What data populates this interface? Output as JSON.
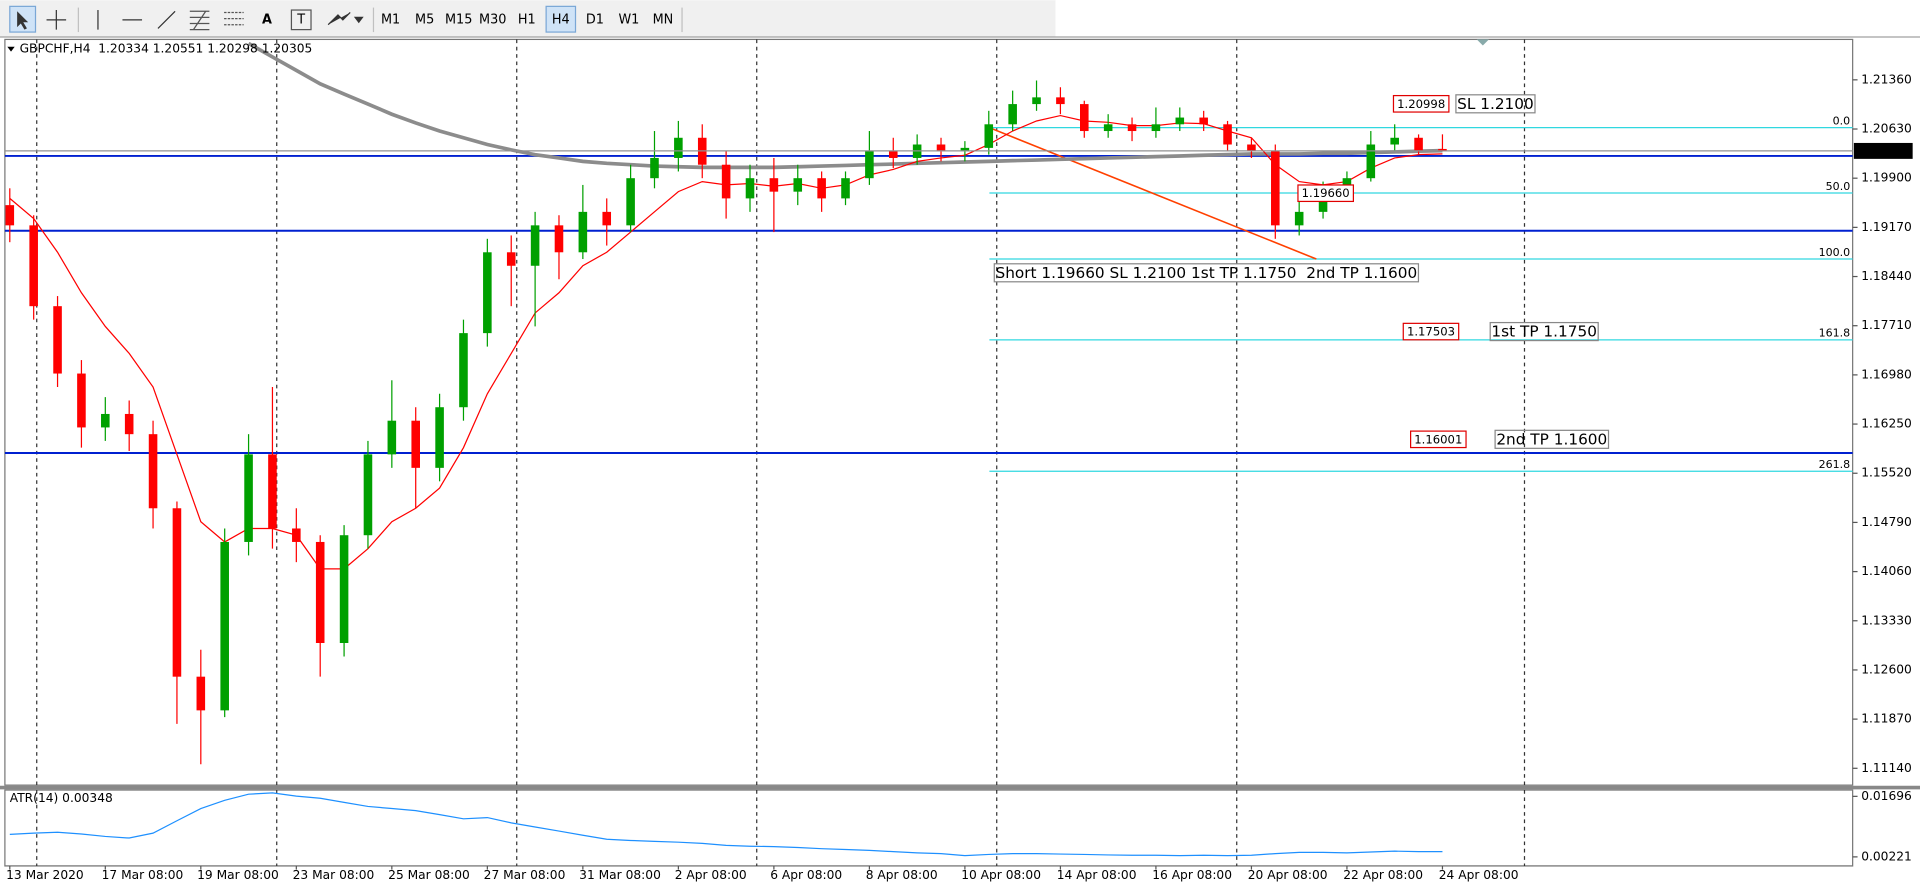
{
  "toolbar": {
    "timeframes": [
      "M1",
      "M5",
      "M15",
      "M30",
      "H1",
      "H4",
      "D1",
      "W1",
      "MN"
    ],
    "active": "H4"
  },
  "chart_data": {
    "type": "candlestick",
    "title": "GBPCHF,H4  1.20334 1.20551 1.20298 1.20305",
    "categories": [
      "13 Mar 2020",
      null,
      null,
      null,
      "17 Mar 08:00",
      null,
      null,
      null,
      "19 Mar 08:00",
      null,
      null,
      null,
      "23 Mar 08:00",
      null,
      null,
      null,
      "25 Mar 08:00",
      null,
      null,
      null,
      "27 Mar 08:00",
      null,
      null,
      null,
      "31 Mar 08:00",
      null,
      null,
      null,
      "2 Apr 08:00",
      null,
      null,
      null,
      "6 Apr 08:00",
      null,
      null,
      null,
      "8 Apr 08:00",
      null,
      null,
      null,
      "10 Apr 08:00",
      null,
      null,
      null,
      "14 Apr 08:00",
      null,
      null,
      null,
      "16 Apr 08:00",
      null,
      null,
      null,
      "20 Apr 08:00",
      null,
      null,
      null,
      "22 Apr 08:00",
      null,
      null,
      null,
      "24 Apr 08:00"
    ],
    "open": [
      1.195,
      1.192,
      1.18,
      1.17,
      1.162,
      1.164,
      1.161,
      1.15,
      1.125,
      1.12,
      1.145,
      1.158,
      1.147,
      1.145,
      1.13,
      1.146,
      1.158,
      1.163,
      1.156,
      1.165,
      1.176,
      1.188,
      1.186,
      1.192,
      1.188,
      1.194,
      1.192,
      1.199,
      1.202,
      1.205,
      1.201,
      1.196,
      1.199,
      1.197,
      1.199,
      1.196,
      1.199,
      1.203,
      1.202,
      1.204,
      1.203,
      1.2035,
      1.207,
      1.21,
      1.211,
      1.21,
      1.206,
      1.207,
      1.206,
      1.207,
      1.208,
      1.207,
      1.204,
      1.203,
      1.192,
      1.194,
      1.197,
      1.199,
      1.204,
      1.205,
      1.20334
    ],
    "high": [
      1.1975,
      1.1935,
      1.1815,
      1.172,
      1.1665,
      1.166,
      1.163,
      1.151,
      1.129,
      1.147,
      1.161,
      1.168,
      1.15,
      1.146,
      1.1475,
      1.16,
      1.169,
      1.165,
      1.167,
      1.178,
      1.19,
      1.1905,
      1.194,
      1.1935,
      1.198,
      1.196,
      1.201,
      1.206,
      1.2075,
      1.207,
      1.203,
      1.201,
      1.202,
      1.201,
      1.2,
      1.2,
      1.206,
      1.205,
      1.2055,
      1.205,
      1.2045,
      1.209,
      1.212,
      1.2135,
      1.2125,
      1.2105,
      1.2085,
      1.208,
      1.2095,
      1.2095,
      1.209,
      1.2075,
      1.205,
      1.204,
      1.196,
      1.1985,
      1.2,
      1.206,
      1.207,
      1.2055,
      1.20551
    ],
    "low": [
      1.1895,
      1.178,
      1.168,
      1.159,
      1.16,
      1.1585,
      1.147,
      1.118,
      1.112,
      1.119,
      1.143,
      1.144,
      1.142,
      1.125,
      1.128,
      1.144,
      1.156,
      1.15,
      1.154,
      1.163,
      1.174,
      1.18,
      1.177,
      1.184,
      1.187,
      1.189,
      1.191,
      1.1975,
      1.2,
      1.199,
      1.193,
      1.194,
      1.191,
      1.195,
      1.194,
      1.195,
      1.198,
      1.2005,
      1.201,
      1.2015,
      1.2015,
      1.2025,
      1.206,
      1.209,
      1.2085,
      1.205,
      1.205,
      1.2045,
      1.205,
      1.206,
      1.206,
      1.203,
      1.202,
      1.19,
      1.1905,
      1.193,
      1.196,
      1.1985,
      1.203,
      1.2025,
      1.20298
    ],
    "close": [
      1.192,
      1.18,
      1.17,
      1.162,
      1.164,
      1.161,
      1.15,
      1.125,
      1.12,
      1.145,
      1.158,
      1.147,
      1.145,
      1.13,
      1.146,
      1.158,
      1.163,
      1.156,
      1.165,
      1.176,
      1.188,
      1.186,
      1.192,
      1.188,
      1.194,
      1.192,
      1.199,
      1.202,
      1.205,
      1.201,
      1.196,
      1.199,
      1.197,
      1.199,
      1.196,
      1.199,
      1.203,
      1.202,
      1.204,
      1.203,
      1.2035,
      1.207,
      1.21,
      1.211,
      1.21,
      1.206,
      1.207,
      1.206,
      1.207,
      1.208,
      1.207,
      1.204,
      1.203,
      1.192,
      1.194,
      1.197,
      1.199,
      1.204,
      1.205,
      1.203,
      1.20305
    ],
    "up_color": "#00a000",
    "down_color": "#ff0000",
    "series": [
      {
        "color": "#8c8c8c",
        "width": 3,
        "values": [
          null,
          null,
          null,
          null,
          null,
          null,
          null,
          null,
          null,
          null,
          1.219,
          1.217,
          1.215,
          1.213,
          1.2115,
          1.21,
          1.2085,
          1.2072,
          1.206,
          1.205,
          1.204,
          1.2032,
          1.2025,
          1.202,
          1.2015,
          1.2012,
          1.201,
          1.2008,
          1.2007,
          1.2006,
          1.2006,
          1.2006,
          1.2006,
          1.2007,
          1.2008,
          1.2009,
          1.201,
          1.2011,
          1.2012,
          1.2013,
          1.2014,
          1.2015,
          1.2016,
          1.2017,
          1.2018,
          1.2019,
          1.202,
          1.2021,
          1.2022,
          1.2023,
          1.2024,
          1.2025,
          1.2026,
          1.2026,
          1.2026,
          1.2027,
          1.2027,
          1.2028,
          1.2029,
          1.203,
          1.2031
        ]
      },
      {
        "color": "#ff0000",
        "width": 1,
        "values": [
          1.196,
          1.193,
          1.188,
          1.182,
          1.177,
          1.173,
          1.168,
          1.158,
          1.148,
          1.145,
          1.147,
          1.147,
          1.146,
          1.141,
          1.141,
          1.144,
          1.148,
          1.15,
          1.153,
          1.159,
          1.167,
          1.173,
          1.179,
          1.182,
          1.186,
          1.188,
          1.191,
          1.194,
          1.197,
          1.1985,
          1.198,
          1.1982,
          1.1978,
          1.1982,
          1.1975,
          1.198,
          1.1995,
          1.2003,
          1.2015,
          1.202,
          1.2024,
          1.204,
          1.206,
          1.2075,
          1.2083,
          1.2075,
          1.2073,
          1.2068,
          1.2068,
          1.2072,
          1.2071,
          1.206,
          1.205,
          1.201,
          1.1985,
          1.198,
          1.1985,
          1.2005,
          1.202,
          1.2025,
          1.2026
        ]
      }
    ],
    "ylim": [
      1.1089,
      1.2196
    ],
    "yticks": [
      {
        "value": 1.2136,
        "label": "1.21360"
      },
      {
        "value": 1.2063,
        "label": "1.20630"
      },
      {
        "value": 1.199,
        "label": "1.19900"
      },
      {
        "value": 1.1917,
        "label": "1.19170"
      },
      {
        "value": 1.1844,
        "label": "1.18440"
      },
      {
        "value": 1.1771,
        "label": "1.17710"
      },
      {
        "value": 1.1698,
        "label": "1.16980"
      },
      {
        "value": 1.1625,
        "label": "1.16250"
      },
      {
        "value": 1.1552,
        "label": "1.15520"
      },
      {
        "value": 1.1479,
        "label": "1.14790"
      },
      {
        "value": 1.1406,
        "label": "1.14060"
      },
      {
        "value": 1.1333,
        "label": "1.13330"
      },
      {
        "value": 1.126,
        "label": "1.12600"
      },
      {
        "value": 1.1187,
        "label": "1.11870"
      },
      {
        "value": 1.1114,
        "label": "1.11140"
      }
    ],
    "last_price": 1.20305,
    "hlines": {
      "color": "#0020d0",
      "values": [
        1.2023,
        1.1912,
        1.1582
      ]
    },
    "fibonacci": {
      "color": "#30d8e0",
      "trend_color": "#ff4000",
      "levels": [
        {
          "value": 1.2065,
          "label": "0.0"
        },
        {
          "value": 1.1968,
          "label": "50.0"
        },
        {
          "value": 1.187,
          "label": "100.0"
        },
        {
          "value": 1.175,
          "label": "161.8"
        },
        {
          "value": 1.1555,
          "label": "261.8"
        }
      ]
    },
    "entry_tag": "1.19660",
    "annotations": [
      {
        "text": "Short 1.19660 SL 1.2100 1st TP 1.1750  2nd TP 1.1600"
      },
      {
        "text": "SL 1.2100",
        "tag": "1.20998"
      },
      {
        "text": "1st TP 1.1750",
        "tag": "1.17503"
      },
      {
        "text": "2nd TP 1.1600",
        "tag": "1.16001"
      }
    ],
    "indicator": {
      "title": "ATR(14) 0.00348",
      "color": "#1e90ff",
      "values": [
        0.0077,
        0.008,
        0.0082,
        0.0078,
        0.0072,
        0.0068,
        0.008,
        0.011,
        0.014,
        0.016,
        0.0175,
        0.0178,
        0.017,
        0.0165,
        0.0155,
        0.0145,
        0.014,
        0.0135,
        0.0125,
        0.0115,
        0.0118,
        0.0105,
        0.0095,
        0.0085,
        0.0075,
        0.0065,
        0.0062,
        0.006,
        0.0058,
        0.0055,
        0.005,
        0.0048,
        0.0047,
        0.0045,
        0.0042,
        0.004,
        0.0038,
        0.0035,
        0.0032,
        0.003,
        0.0025,
        0.0028,
        0.003,
        0.003,
        0.0029,
        0.0028,
        0.0027,
        0.0026,
        0.0026,
        0.0025,
        0.0026,
        0.0025,
        0.0026,
        0.003,
        0.0033,
        0.0033,
        0.0032,
        0.0034,
        0.0036,
        0.0035,
        0.00348
      ],
      "ylim": [
        0,
        0.0185
      ],
      "yticks": [
        0.01696,
        0.00221
      ]
    }
  }
}
